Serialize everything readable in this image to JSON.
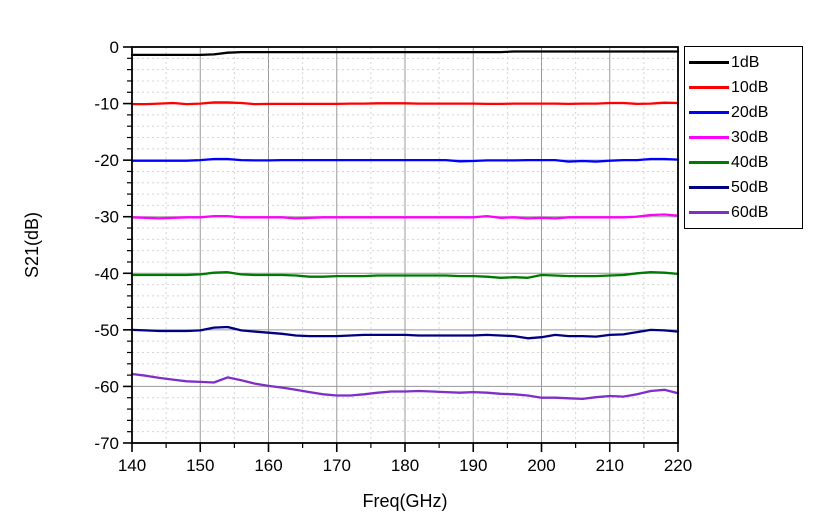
{
  "chart_data": {
    "type": "line",
    "title": "",
    "xlabel": "Freq(GHz)",
    "ylabel": "S21(dB)",
    "xlim": [
      140,
      220
    ],
    "ylim": [
      -70,
      0
    ],
    "x_major_ticks": [
      140,
      150,
      160,
      170,
      180,
      190,
      200,
      210,
      220
    ],
    "x_minor_step": 5,
    "y_major_ticks": [
      0,
      -10,
      -20,
      -30,
      -40,
      -50,
      -60,
      -70
    ],
    "y_minor_step": 2,
    "grid": {
      "major_style": "solid",
      "minor_style": "dashed",
      "major_color": "#9a9a9a",
      "minor_color": "#d4d4d4"
    },
    "legend_position": "outside-right",
    "frame_color": "#000000",
    "x": [
      140,
      142,
      144,
      146,
      148,
      150,
      152,
      154,
      156,
      158,
      160,
      162,
      164,
      166,
      168,
      170,
      172,
      174,
      176,
      178,
      180,
      182,
      184,
      186,
      188,
      190,
      192,
      194,
      196,
      198,
      200,
      202,
      204,
      206,
      208,
      210,
      212,
      214,
      216,
      218,
      220
    ],
    "series": [
      {
        "name": "1dB",
        "color": "#000000",
        "values": [
          -1.4,
          -1.4,
          -1.4,
          -1.4,
          -1.4,
          -1.4,
          -1.3,
          -1.0,
          -0.9,
          -0.9,
          -0.9,
          -0.9,
          -0.9,
          -0.9,
          -0.9,
          -0.9,
          -0.9,
          -0.9,
          -0.9,
          -0.9,
          -0.9,
          -0.9,
          -0.9,
          -0.9,
          -0.9,
          -0.9,
          -0.9,
          -0.9,
          -0.8,
          -0.8,
          -0.8,
          -0.8,
          -0.8,
          -0.8,
          -0.8,
          -0.8,
          -0.8,
          -0.8,
          -0.8,
          -0.8,
          -0.8
        ]
      },
      {
        "name": "10dB",
        "color": "#ff0000",
        "values": [
          -10.1,
          -10.1,
          -10.0,
          -9.9,
          -10.1,
          -10.0,
          -9.8,
          -9.8,
          -9.9,
          -10.1,
          -10.05,
          -10.05,
          -10.05,
          -10.05,
          -10.05,
          -10.05,
          -10.0,
          -10.0,
          -9.95,
          -9.95,
          -9.95,
          -10.0,
          -10.0,
          -10.0,
          -10.0,
          -10.0,
          -10.05,
          -10.05,
          -10.0,
          -10.0,
          -10.0,
          -10.0,
          -10.05,
          -10.0,
          -10.0,
          -9.9,
          -9.9,
          -10.05,
          -10.0,
          -9.85,
          -9.9
        ]
      },
      {
        "name": "20dB",
        "color": "#0000ff",
        "values": [
          -20.1,
          -20.1,
          -20.1,
          -20.1,
          -20.1,
          -20.0,
          -19.8,
          -19.8,
          -20.0,
          -20.05,
          -20.05,
          -20.0,
          -20.0,
          -20.0,
          -20.0,
          -20.0,
          -20.0,
          -20.0,
          -20.0,
          -20.0,
          -20.0,
          -20.0,
          -20.0,
          -20.0,
          -20.2,
          -20.15,
          -20.05,
          -20.05,
          -20.05,
          -20.0,
          -20.0,
          -20.0,
          -20.25,
          -20.15,
          -20.25,
          -20.1,
          -20.0,
          -20.0,
          -19.8,
          -19.8,
          -19.9
        ]
      },
      {
        "name": "30dB",
        "color": "#ff00ff",
        "values": [
          -30.1,
          -30.2,
          -30.3,
          -30.2,
          -30.1,
          -30.1,
          -29.9,
          -29.9,
          -30.1,
          -30.1,
          -30.1,
          -30.1,
          -30.3,
          -30.2,
          -30.1,
          -30.1,
          -30.1,
          -30.1,
          -30.1,
          -30.1,
          -30.1,
          -30.1,
          -30.1,
          -30.1,
          -30.1,
          -30.1,
          -29.9,
          -30.2,
          -30.1,
          -30.3,
          -30.2,
          -30.3,
          -30.1,
          -30.1,
          -30.1,
          -30.1,
          -30.1,
          -30.0,
          -29.7,
          -29.6,
          -29.8
        ]
      },
      {
        "name": "40dB",
        "color": "#007a00",
        "values": [
          -40.3,
          -40.3,
          -40.3,
          -40.3,
          -40.3,
          -40.2,
          -39.9,
          -39.8,
          -40.2,
          -40.3,
          -40.3,
          -40.3,
          -40.4,
          -40.6,
          -40.6,
          -40.5,
          -40.5,
          -40.5,
          -40.4,
          -40.4,
          -40.4,
          -40.4,
          -40.4,
          -40.4,
          -40.5,
          -40.5,
          -40.6,
          -40.8,
          -40.7,
          -40.8,
          -40.3,
          -40.4,
          -40.5,
          -40.5,
          -40.5,
          -40.4,
          -40.3,
          -40.0,
          -39.8,
          -39.9,
          -40.1
        ]
      },
      {
        "name": "50dB",
        "color": "#000080",
        "values": [
          -50.0,
          -50.1,
          -50.2,
          -50.2,
          -50.2,
          -50.1,
          -49.6,
          -49.5,
          -50.1,
          -50.3,
          -50.5,
          -50.7,
          -51.0,
          -51.1,
          -51.1,
          -51.1,
          -51.0,
          -50.9,
          -50.9,
          -50.9,
          -50.9,
          -51.0,
          -51.0,
          -51.0,
          -51.0,
          -51.0,
          -50.9,
          -51.0,
          -51.1,
          -51.5,
          -51.3,
          -50.9,
          -51.1,
          -51.1,
          -51.2,
          -50.9,
          -50.8,
          -50.4,
          -50.0,
          -50.1,
          -50.3
        ]
      },
      {
        "name": "60dB",
        "color": "#7d2fc8",
        "values": [
          -57.8,
          -58.1,
          -58.5,
          -58.8,
          -59.1,
          -59.2,
          -59.3,
          -58.4,
          -58.9,
          -59.5,
          -59.9,
          -60.2,
          -60.6,
          -61.0,
          -61.4,
          -61.6,
          -61.6,
          -61.4,
          -61.1,
          -60.9,
          -60.9,
          -60.8,
          -60.9,
          -61.0,
          -61.1,
          -61.0,
          -61.1,
          -61.3,
          -61.4,
          -61.6,
          -62.0,
          -62.0,
          -62.1,
          -62.2,
          -61.9,
          -61.7,
          -61.8,
          -61.4,
          -60.8,
          -60.6,
          -61.2
        ]
      }
    ]
  }
}
